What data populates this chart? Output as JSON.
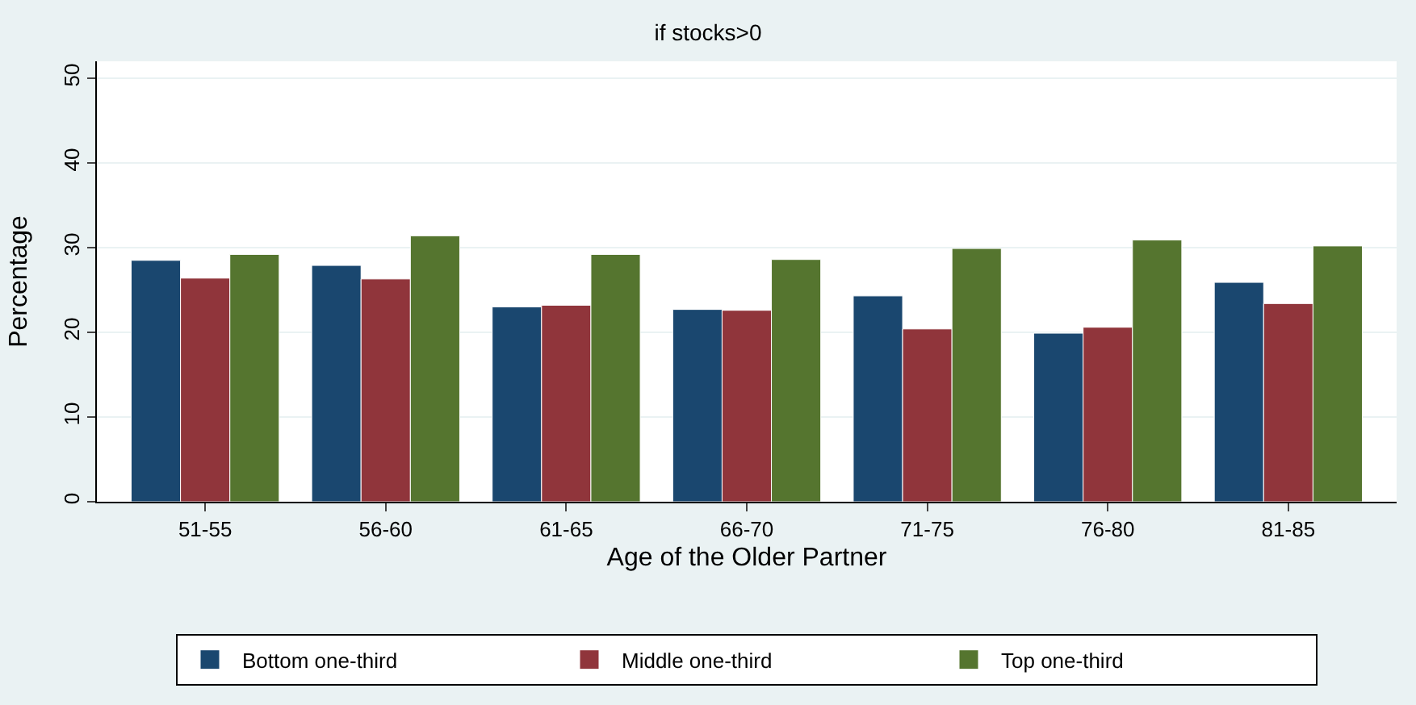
{
  "chart_data": {
    "type": "bar",
    "title": "if stocks>0",
    "xlabel": "Age of the Older Partner",
    "ylabel": "Percentage",
    "categories": [
      "51-55",
      "56-60",
      "61-65",
      "66-70",
      "71-75",
      "76-80",
      "81-85"
    ],
    "series": [
      {
        "name": "Bottom one-third",
        "color": "#1a476f",
        "values": [
          28.5,
          27.9,
          23.0,
          22.7,
          24.3,
          19.9,
          25.9
        ]
      },
      {
        "name": "Middle one-third",
        "color": "#90353b",
        "values": [
          26.4,
          26.3,
          23.2,
          22.6,
          20.4,
          20.6,
          23.4
        ]
      },
      {
        "name": "Top one-third",
        "color": "#55752f",
        "values": [
          29.2,
          31.4,
          29.2,
          28.6,
          29.9,
          30.9,
          30.2
        ]
      }
    ],
    "ylim": [
      0,
      52
    ],
    "yticks": [
      0,
      10,
      20,
      30,
      40,
      50
    ],
    "grid": "y",
    "legend": "bottom"
  }
}
